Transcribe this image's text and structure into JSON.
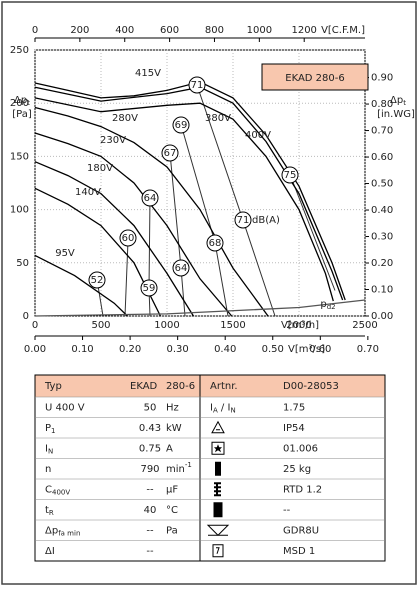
{
  "chart_data": {
    "type": "line",
    "series": [
      {
        "name": "415V",
        "color": "#000000",
        "x": [
          0,
          250,
          500,
          750,
          1000,
          1250,
          1500,
          1750,
          2000,
          2250,
          2350
        ],
        "values": [
          219,
          212,
          205,
          207,
          212,
          220,
          205,
          170,
          122,
          50,
          15
        ]
      },
      {
        "name": "400V",
        "color": "#000000",
        "x": [
          0,
          500,
          1000,
          1250,
          1500,
          1750,
          2000,
          2250,
          2330
        ],
        "values": [
          215,
          202,
          209,
          215,
          200,
          164,
          115,
          42,
          15
        ]
      },
      {
        "name": "380V",
        "color": "#000000",
        "x": [
          0,
          500,
          1000,
          1250,
          1500,
          1750,
          2000,
          2200,
          2260
        ],
        "values": [
          205,
          192,
          198,
          200,
          185,
          150,
          100,
          40,
          14
        ]
      },
      {
        "name": "280V",
        "color": "#000000",
        "x": [
          0,
          250,
          500,
          750,
          1000,
          1250,
          1500,
          1765
        ],
        "values": [
          196,
          188,
          178,
          163,
          140,
          100,
          45,
          0
        ]
      },
      {
        "name": "230V",
        "color": "#000000",
        "x": [
          0,
          250,
          500,
          750,
          1000,
          1250,
          1490
        ],
        "values": [
          172,
          162,
          150,
          125,
          85,
          35,
          0
        ]
      },
      {
        "name": "180V",
        "color": "#000000",
        "x": [
          0,
          250,
          500,
          750,
          1000,
          1200
        ],
        "values": [
          145,
          132,
          115,
          85,
          40,
          0
        ]
      },
      {
        "name": "140V",
        "color": "#000000",
        "x": [
          0,
          250,
          500,
          750,
          950
        ],
        "values": [
          120,
          105,
          85,
          50,
          0
        ]
      },
      {
        "name": "95V",
        "color": "#000000",
        "x": [
          0,
          300,
          600,
          700
        ],
        "values": [
          57,
          38,
          12,
          0
        ]
      },
      {
        "label": [
          {
            "t": "p",
            "s": "d2"
          }
        ],
        "color": "#555555",
        "x": [
          0,
          1000,
          2000,
          2500
        ],
        "values": [
          0,
          2,
          8,
          15
        ]
      }
    ],
    "iso_lines": [
      {
        "x": [
          1227,
          1576,
          1818
        ],
        "values": [
          217,
          90,
          0
        ]
      },
      {
        "x": [
          1106,
          1364,
          1462
        ],
        "values": [
          180,
          69,
          0
        ]
      },
      {
        "x": [
          1023,
          1106,
          1136
        ],
        "values": [
          153,
          45,
          0
        ]
      },
      {
        "x": [
          871,
          864,
          871
        ],
        "values": [
          111,
          26,
          0
        ]
      },
      {
        "x": [
          705,
          682
        ],
        "values": [
          73,
          0
        ]
      },
      {
        "x": [
          470,
          515
        ],
        "values": [
          34,
          0
        ]
      },
      {
        "x": [
          1932,
          2273
        ],
        "values": [
          133,
          24
        ]
      }
    ],
    "iso_color": "#333333",
    "db_labels": [
      71,
      69,
      67,
      64,
      60,
      52,
      59,
      64,
      68,
      71,
      75
    ],
    "db_unit": "dB(A)",
    "badge": "EKAD 280-6",
    "badge_color": "#f8c7ae",
    "xlim": [
      0,
      2500
    ],
    "xticks": [
      0,
      500,
      1000,
      1500,
      2000,
      2500
    ],
    "x_label": "V[m³/h]",
    "x2lim": [
      0,
      1471
    ],
    "x2ticks": [
      0,
      200,
      400,
      600,
      800,
      1000,
      1200
    ],
    "x2_label": "V[C.F.M.]",
    "x3lim": [
      0,
      0.694
    ],
    "x3ticks": [
      {
        "value": 0,
        "label": "0.00"
      },
      {
        "value": 0.1,
        "label": "0.10"
      },
      {
        "value": 0.2,
        "label": "0.20"
      },
      {
        "value": 0.3,
        "label": "0.30"
      },
      {
        "value": 0.4,
        "label": "0.40"
      },
      {
        "value": 0.5,
        "label": "0.50"
      },
      {
        "value": 0.6,
        "label": "0.60"
      },
      {
        "value": 0.7,
        "label": "0.70"
      }
    ],
    "x3_label": "V[m³/s]",
    "ylim": [
      0,
      250
    ],
    "yticks": [
      0,
      50,
      100,
      150,
      200,
      250
    ],
    "y_label": [
      {
        "t": "Δp",
        "s": "t"
      }
    ],
    "y_unit": "[Pa]",
    "y2lim": [
      0,
      1.004
    ],
    "y2ticks": [
      {
        "value": 0,
        "label": "0.00"
      },
      {
        "value": 0.1,
        "label": "0.10"
      },
      {
        "value": 0.2,
        "label": "0.20"
      },
      {
        "value": 0.3,
        "label": "0.30"
      },
      {
        "value": 0.4,
        "label": "0.40"
      },
      {
        "value": 0.5,
        "label": "0.50"
      },
      {
        "value": 0.6,
        "label": "0.60"
      },
      {
        "value": 0.7,
        "label": "0.70"
      },
      {
        "value": 0.8,
        "label": "0.80"
      },
      {
        "value": 0.9,
        "label": "0.90"
      }
    ],
    "y2_label": [
      {
        "t": "Δp",
        "s": "t"
      }
    ],
    "y2_unit": "[in.WG]",
    "grid": true
  },
  "table": {
    "header": [
      "Typ",
      "EKAD",
      "280-6",
      "Artnr.",
      "D00-28053"
    ],
    "rows": [
      {
        "sym": [
          {
            "t": "U   400   V"
          }
        ],
        "value": "50",
        "unit": [
          {
            "t": "Hz"
          }
        ],
        "rsym": [
          {
            "t": "I",
            "s": "A"
          },
          {
            "t": " / I",
            "s": "N"
          }
        ],
        "rvalue": "1.75"
      },
      {
        "sym": [
          {
            "t": "P",
            "s": "1"
          }
        ],
        "value": "0.43",
        "unit": [
          {
            "t": "kW"
          }
        ],
        "rvalue": "IP54"
      },
      {
        "sym": [
          {
            "t": "I",
            "s": "N"
          }
        ],
        "value": "0.75",
        "unit": [
          {
            "t": "A"
          }
        ],
        "rvalue": "01.006"
      },
      {
        "sym": [
          {
            "t": "n"
          }
        ],
        "value": "790",
        "unit": [
          {
            "t": "min",
            "sup": "-1"
          }
        ],
        "rvalue": "25  kg"
      },
      {
        "sym": [
          {
            "t": "C",
            "s": "400V"
          }
        ],
        "value": "--",
        "unit": [
          {
            "t": "µF"
          }
        ],
        "rvalue": "RTD 1.2"
      },
      {
        "sym": [
          {
            "t": "t",
            "s": "R"
          }
        ],
        "value": "40",
        "unit": [
          {
            "t": "°C"
          }
        ],
        "rvalue": "--"
      },
      {
        "sym": [
          {
            "t": "Δp",
            "s": "fa min"
          }
        ],
        "value": "--",
        "unit": [
          {
            "t": "Pa"
          }
        ],
        "rvalue": "GDR8U"
      },
      {
        "sym": [
          {
            "t": "ΔI"
          }
        ],
        "value": "--",
        "rvalue": "MSD 1"
      }
    ],
    "header_color": "#f8c7ae"
  }
}
